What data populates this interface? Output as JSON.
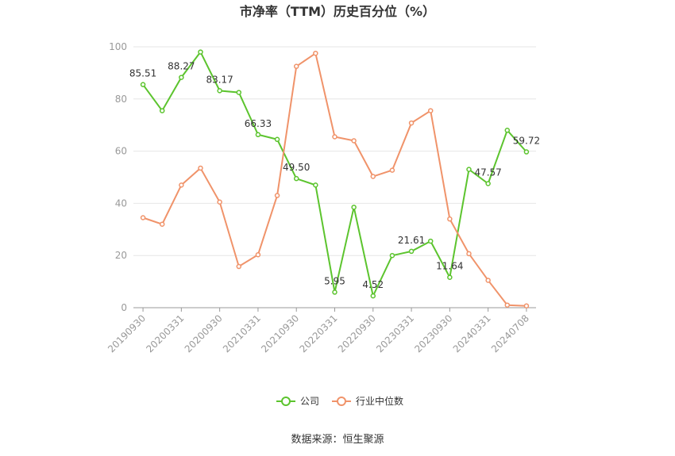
{
  "chart_data": {
    "type": "line",
    "title": "市净率（TTM）历史百分位（%）",
    "source": "数据来源：恒生聚源",
    "categories": [
      "20190930",
      null,
      "20200331",
      null,
      "20200930",
      null,
      "20210331",
      null,
      "20210930",
      null,
      "20220331",
      null,
      "20220930",
      null,
      "20230331",
      null,
      "20230930",
      null,
      "20240331",
      null,
      "20240708"
    ],
    "series": [
      {
        "name": "公司",
        "color": "#5cc42e",
        "values": [
          85.51,
          75.5,
          88.27,
          98,
          83.17,
          82.5,
          66.33,
          64.5,
          49.5,
          47,
          5.95,
          38.5,
          4.52,
          20,
          21.61,
          25.5,
          11.64,
          53,
          47.57,
          68,
          59.72
        ],
        "value_labels": [
          "85.51",
          null,
          "88.27",
          null,
          "83.17",
          null,
          "66.33",
          null,
          "49.50",
          null,
          "5.95",
          null,
          "4.52",
          null,
          "21.61",
          null,
          "11.64",
          null,
          "47.57",
          null,
          "59.72"
        ]
      },
      {
        "name": "行业中位数",
        "color": "#f0936a",
        "values": [
          34.5,
          32,
          47,
          53.5,
          40.5,
          15.8,
          20.3,
          43,
          92.5,
          97.5,
          65.5,
          64,
          50.3,
          52.7,
          70.8,
          75.5,
          34,
          20.7,
          10.5,
          1,
          0.7
        ]
      }
    ],
    "ylim": [
      0,
      100
    ],
    "yticks": [
      0,
      20,
      40,
      60,
      80,
      100
    ],
    "grid": true,
    "legend": "bottom"
  }
}
